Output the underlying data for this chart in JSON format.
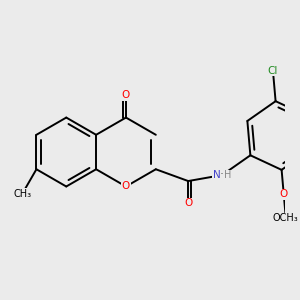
{
  "bg_color": "#ebebeb",
  "bond_color": "#000000",
  "lw": 1.4,
  "figsize": [
    3.0,
    3.0
  ],
  "dpi": 100,
  "bond_r": 0.85,
  "colors": {
    "O": "#ff0000",
    "N": "#4444cc",
    "Cl": "#228B22",
    "C": "#000000",
    "H": "#888888"
  }
}
